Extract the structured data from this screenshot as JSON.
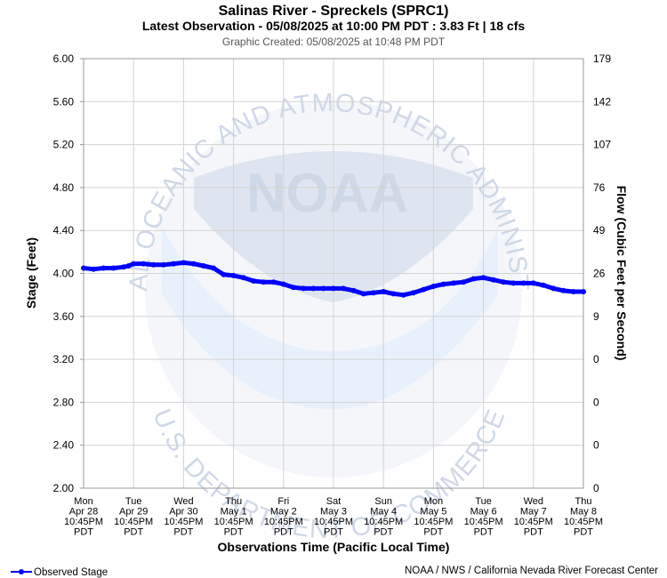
{
  "chart_data": {
    "type": "line",
    "title": "Salinas River - Spreckels (SPRC1)",
    "subtitle": "Latest Observation - 05/08/2025 at 10:00 PM PDT : 3.83 Ft | 18 cfs",
    "created": "Graphic Created: 05/08/2025 at 10:48 PM PDT",
    "xlabel": "Observations Time (Pacific Local Time)",
    "ylabel": "Stage (Feet)",
    "y2label": "Flow (Cubic Feet per Second)",
    "ylim": [
      2.0,
      6.0
    ],
    "xlim": [
      0,
      10
    ],
    "grid": true,
    "legend": "bottom-left",
    "y_ticks": [
      "6.00",
      "5.60",
      "5.20",
      "4.80",
      "4.40",
      "4.00",
      "3.60",
      "3.20",
      "2.80",
      "2.40",
      "2.00"
    ],
    "y2_ticks": [
      "179",
      "142",
      "107",
      "76",
      "49",
      "26",
      "9",
      "0",
      "0",
      "0",
      "0"
    ],
    "x_ticks": [
      [
        "Mon",
        "Apr 28",
        "10:45PM",
        "PDT"
      ],
      [
        "Tue",
        "Apr 29",
        "10:45PM",
        "PDT"
      ],
      [
        "Wed",
        "Apr 30",
        "10:45PM",
        "PDT"
      ],
      [
        "Thu",
        "May 1",
        "10:45PM",
        "PDT"
      ],
      [
        "Fri",
        "May 2",
        "10:45PM",
        "PDT"
      ],
      [
        "Sat",
        "May 3",
        "10:45PM",
        "PDT"
      ],
      [
        "Sun",
        "May 4",
        "10:45PM",
        "PDT"
      ],
      [
        "Mon",
        "May 5",
        "10:45PM",
        "PDT"
      ],
      [
        "Tue",
        "May 6",
        "10:45PM",
        "PDT"
      ],
      [
        "Wed",
        "May 7",
        "10:45PM",
        "PDT"
      ],
      [
        "Thu",
        "May 8",
        "10:45PM",
        "PDT"
      ]
    ],
    "series": [
      {
        "name": "Observed Stage",
        "color": "#0000ff",
        "x": [
          0,
          0.2,
          0.4,
          0.6,
          0.8,
          0.9,
          1.0,
          1.2,
          1.4,
          1.6,
          1.8,
          2.0,
          2.2,
          2.4,
          2.6,
          2.8,
          3.0,
          3.2,
          3.4,
          3.6,
          3.8,
          4.0,
          4.2,
          4.4,
          4.6,
          4.8,
          5.0,
          5.2,
          5.4,
          5.6,
          5.8,
          6.0,
          6.2,
          6.4,
          6.6,
          6.8,
          7.0,
          7.2,
          7.4,
          7.6,
          7.8,
          8.0,
          8.2,
          8.4,
          8.6,
          8.8,
          9.0,
          9.2,
          9.4,
          9.6,
          9.8,
          10.0
        ],
        "values": [
          4.05,
          4.04,
          4.05,
          4.05,
          4.06,
          4.07,
          4.09,
          4.09,
          4.08,
          4.08,
          4.09,
          4.1,
          4.09,
          4.07,
          4.05,
          3.99,
          3.98,
          3.96,
          3.93,
          3.92,
          3.92,
          3.9,
          3.87,
          3.86,
          3.86,
          3.86,
          3.86,
          3.86,
          3.84,
          3.81,
          3.82,
          3.83,
          3.81,
          3.8,
          3.82,
          3.85,
          3.88,
          3.9,
          3.91,
          3.92,
          3.95,
          3.96,
          3.94,
          3.92,
          3.91,
          3.91,
          3.91,
          3.89,
          3.86,
          3.84,
          3.83,
          3.83
        ]
      }
    ],
    "watermark": {
      "logo_text": "NOAA",
      "arc_top": "NATIONAL OCEANIC AND ATMOSPHERIC ADMINISTRATION",
      "arc_bottom": "U.S. DEPARTMENT OF COMMERCE"
    }
  },
  "footer": {
    "legend_label": "Observed Stage",
    "credit": "NOAA / NWS / California Nevada River Forecast Center"
  }
}
